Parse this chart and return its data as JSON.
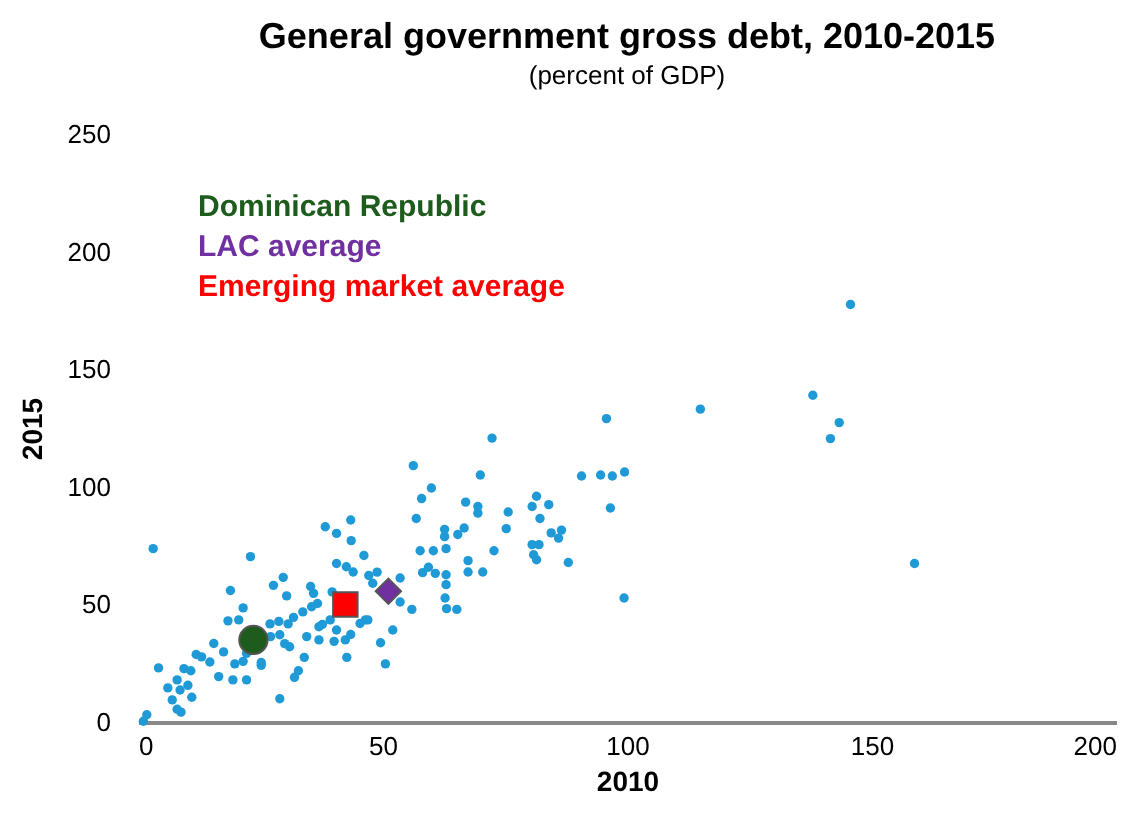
{
  "chart_data": {
    "type": "scatter",
    "title": "General government gross debt, 2010-2015",
    "subtitle": "(percent of GDP)",
    "xlabel": "2010",
    "ylabel": "2015",
    "xlim": [
      0,
      200
    ],
    "xticks": [
      0,
      50,
      100,
      150,
      200
    ],
    "ylim": [
      0,
      250
    ],
    "yticks": [
      0,
      50,
      100,
      150,
      200,
      250
    ],
    "legend": "top left",
    "series": [
      {
        "type": "scatter",
        "marker": "circle",
        "color": "#1f9ad6",
        "x": [
          145.7,
          138,
          115,
          143.4,
          141.6,
          158.8,
          95.8,
          72.4,
          56.3,
          70,
          60,
          58,
          90.7,
          94.6,
          97,
          99.5,
          96.6,
          81.5,
          80.6,
          84,
          82.2,
          67,
          69.5,
          69.5,
          75.7,
          56.9,
          75.3,
          66.7,
          62.7,
          62.7,
          65.4,
          84.5,
          86.6,
          86,
          80.6,
          82,
          80.9,
          81.5,
          88,
          72.8,
          67.5,
          57.7,
          60.4,
          63,
          59.4,
          58.2,
          60.8,
          63,
          67.5,
          70.5,
          63,
          62.8,
          63.1,
          65.2,
          99.4,
          46.2,
          47.2,
          48.9,
          53.6,
          48,
          56,
          52.1,
          49.6,
          50.6,
          46.5,
          53.6,
          3.1,
          23,
          38.3,
          43.5,
          40.6,
          43.6,
          18.9,
          27.7,
          29.7,
          30.4,
          35.3,
          35.9,
          40.6,
          42.6,
          44,
          39.7,
          36.7,
          35.5,
          33.7,
          31.8,
          30.7,
          28.8,
          27,
          21.5,
          20.6,
          18.4,
          15.5,
          11.9,
          13,
          14.7,
          17.5,
          19.8,
          22.2,
          19.4,
          16.5,
          9.4,
          10.8,
          8,
          10.2,
          6.1,
          8.6,
          7,
          8,
          8.8,
          11,
          4.2,
          1.8,
          1.1,
          29,
          32,
          32.8,
          34,
          31,
          30,
          27.1,
          25.2,
          25.2,
          22.2,
          21.5,
          37,
          37.7,
          39.3,
          40.6,
          42.4,
          40.1,
          42.7,
          43.5,
          37,
          45.4,
          47,
          34.5,
          29
        ],
        "values": [
          177.5,
          138.9,
          133,
          127.3,
          120.5,
          67.4,
          129,
          120.7,
          109,
          105,
          99.5,
          95,
          104.6,
          105,
          104.6,
          106.3,
          91,
          96,
          91.6,
          92.4,
          86.5,
          93.5,
          91.6,
          88.8,
          89.3,
          86.5,
          82.2,
          82.5,
          81.9,
          78.8,
          79.7,
          80.4,
          81.6,
          78.2,
          75.4,
          75.4,
          71.1,
          69,
          67.8,
          72.8,
          68.6,
          72.8,
          72.8,
          73.7,
          65.8,
          63.5,
          63.2,
          62.6,
          63.8,
          63.8,
          58.4,
          52.7,
          48.2,
          47.9,
          52.7,
          70.8,
          62.3,
          63.7,
          61.2,
          59,
          47.9,
          39.1,
          33.7,
          24.7,
          43.4,
          51,
          73.7,
          70.3,
          83,
          85.9,
          80.2,
          77.1,
          55.9,
          58.1,
          61.5,
          53.6,
          57.6,
          54.7,
          67.4,
          66,
          63.8,
          55.3,
          50.4,
          49,
          46.8,
          44.5,
          41.7,
          42.8,
          41.7,
          48.5,
          43.4,
          43,
          33.4,
          28.7,
          27.7,
          25.5,
          29.8,
          24.7,
          17.9,
          17.9,
          19.3,
          22.7,
          21.8,
          17.9,
          15.6,
          14.5,
          13.6,
          9.4,
          5.4,
          4.2,
          10.5,
          23,
          3.1,
          0.3,
          9.9,
          19,
          21.8,
          27.5,
          32,
          33.3,
          36.3,
          24.1,
          25.3,
          29.2,
          25.8,
          40.5,
          41.5,
          43.4,
          39.1,
          34.9,
          34.3,
          27.5,
          37.2,
          34.9,
          41.9,
          43.4,
          36.3,
          37.1
        ]
      },
      {
        "type": "scatter",
        "name": "Dominican Republic",
        "marker": "circle",
        "color": "#1e5c1e",
        "x": [
          23.6
        ],
        "values": [
          34.9
        ]
      },
      {
        "type": "scatter",
        "name": "LAC average",
        "marker": "diamond",
        "color": "#7030a0",
        "x": [
          51.2
        ],
        "values": [
          55.6
        ]
      },
      {
        "type": "scatter",
        "name": "Emerging market average",
        "marker": "square",
        "color": "#ff0000",
        "x": [
          42.4
        ],
        "values": [
          50
        ]
      }
    ]
  }
}
